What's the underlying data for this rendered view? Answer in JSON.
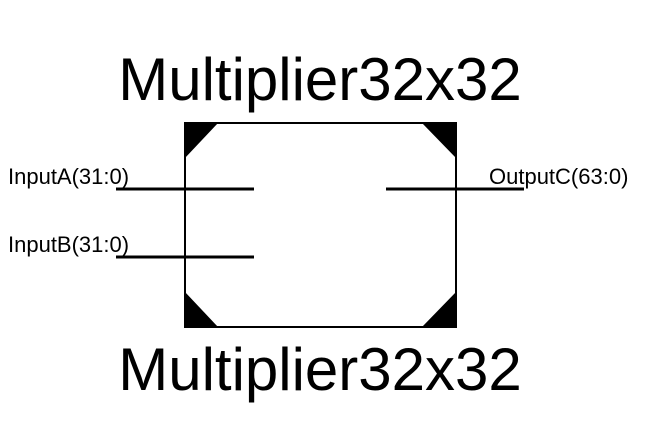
{
  "block": {
    "title_top": "Multiplier32x32",
    "title_bottom": "Multiplier32x32"
  },
  "ports": {
    "input_a": "InputA(31:0)",
    "input_b": "InputB(31:0)",
    "output_c": "OutputC(63:0)"
  },
  "colors": {
    "stroke": "#000000",
    "background": "#ffffff"
  }
}
